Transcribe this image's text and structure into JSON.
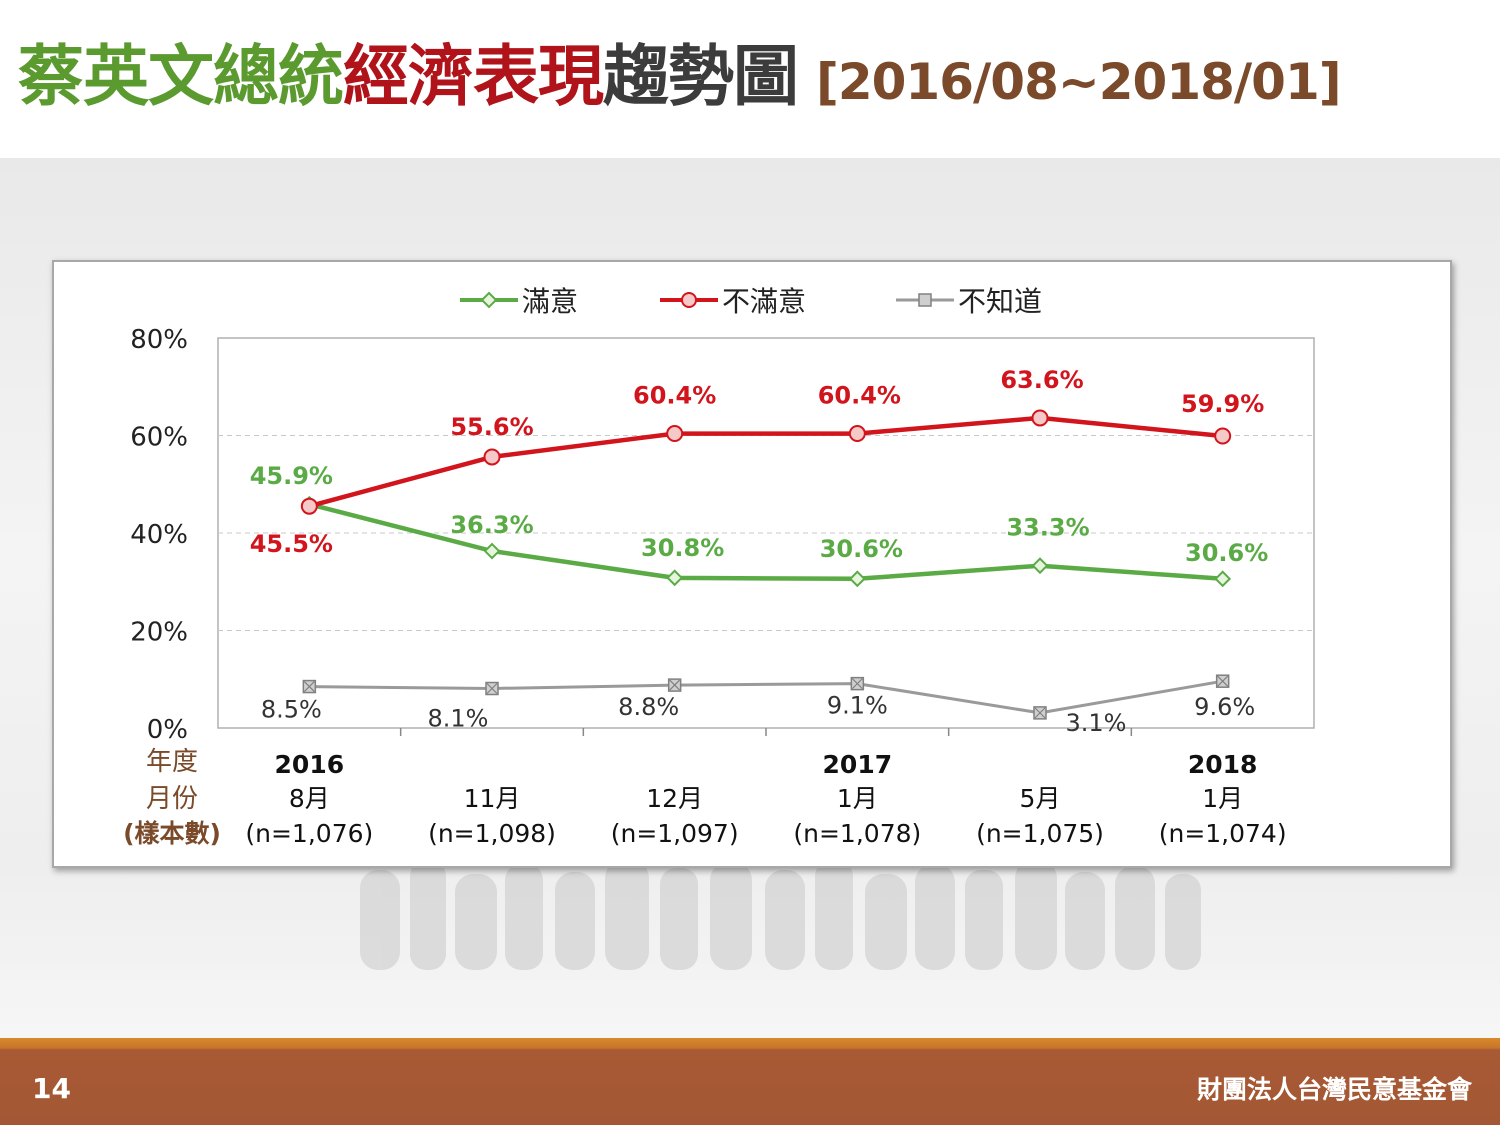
{
  "title": {
    "part1": "蔡英文總統",
    "part2": "經濟表現",
    "part3": "趨勢圖",
    "period": "[2016/08~2018/01]"
  },
  "footer": {
    "page_number": "14",
    "organization": "財團法人台灣民意基金會"
  },
  "colors": {
    "satisfied": "#5aab45",
    "dissatisfied": "#d2141c",
    "unknown": "#9a9a9a",
    "row_label": "#7a4a2a"
  },
  "chart_data": {
    "type": "line",
    "ylim": [
      0,
      80
    ],
    "yticks": [
      "0%",
      "20%",
      "40%",
      "60%",
      "80%"
    ],
    "grid": true,
    "legend_position": "top",
    "row_labels": {
      "year": "年度",
      "month": "月份",
      "sample": "(樣本數)"
    },
    "categories": [
      {
        "year": "2016",
        "month": "8月",
        "sample": "(n=1,076)"
      },
      {
        "year": "",
        "month": "11月",
        "sample": "(n=1,098)"
      },
      {
        "year": "",
        "month": "12月",
        "sample": "(n=1,097)"
      },
      {
        "year": "2017",
        "month": "1月",
        "sample": "(n=1,078)"
      },
      {
        "year": "",
        "month": "5月",
        "sample": "(n=1,075)"
      },
      {
        "year": "2018",
        "month": "1月",
        "sample": "(n=1,074)"
      }
    ],
    "series": [
      {
        "name": "滿意",
        "values": [
          45.9,
          36.3,
          30.8,
          30.6,
          33.3,
          30.6
        ],
        "labels": [
          "45.9%",
          "36.3%",
          "30.8%",
          "30.6%",
          "33.3%",
          "30.6%"
        ]
      },
      {
        "name": "不滿意",
        "values": [
          45.5,
          55.6,
          60.4,
          60.4,
          63.6,
          59.9
        ],
        "labels": [
          "45.5%",
          "55.6%",
          "60.4%",
          "60.4%",
          "63.6%",
          "59.9%"
        ]
      },
      {
        "name": "不知道",
        "values": [
          8.5,
          8.1,
          8.8,
          9.1,
          3.1,
          9.6
        ],
        "labels": [
          "8.5%",
          "8.1%",
          "8.8%",
          "9.1%",
          "3.1%",
          "9.6%"
        ]
      }
    ]
  }
}
